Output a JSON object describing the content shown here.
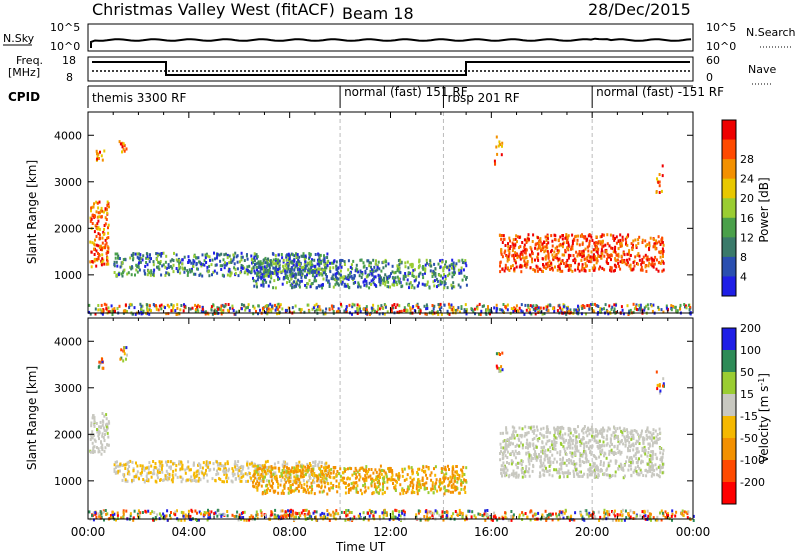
{
  "header": {
    "station": "Christmas Valley West (fitACF)",
    "beam": "Beam 18",
    "date": "28/Dec/2015"
  },
  "strip_labels": {
    "nsky": "N.Sky",
    "nsearch": "N.Search",
    "freq_line1": "Freq.",
    "freq_line2": "[MHz]",
    "nave": "Nave",
    "cpid": "CPID",
    "noise_top_left": "10^5",
    "noise_bottom_left": "10^0",
    "noise_top_right": "10^5",
    "noise_bottom_right": "10^0",
    "freq_top": "18",
    "freq_bottom": "8",
    "nave_top": "60",
    "nave_bottom": "0"
  },
  "cpid_segments": [
    {
      "label": "themis 3300 RF",
      "start": 0.0
    },
    {
      "label": "normal (fast) 151 RF",
      "start": 10.0
    },
    {
      "label": "rbsp 201 RF",
      "start": 14.1
    },
    {
      "label": "normal (fast) -151 RF",
      "start": 20.0
    }
  ],
  "chart_data": [
    {
      "type": "heatmap",
      "title": "",
      "xlabel": "Time UT",
      "ylabel": "Slant Range [km]",
      "xlim": [
        0,
        24
      ],
      "ylim": [
        180,
        4500
      ],
      "x_ticks": [
        "00:00",
        "04:00",
        "08:00",
        "12:00",
        "16:00",
        "20:00",
        "00:00"
      ],
      "y_ticks": [
        "1000",
        "2000",
        "3000",
        "4000"
      ],
      "colorbar": {
        "label": "Power [dB]",
        "range": [
          0,
          32
        ],
        "ticks": [
          "4",
          "8",
          "12",
          "16",
          "20",
          "24",
          "28"
        ],
        "colors": [
          "#1f1fe6",
          "#2a4fb0",
          "#3a7a6a",
          "#4aa04a",
          "#9acd32",
          "#e8c800",
          "#f39000",
          "#ff4a00",
          "#ee0000"
        ]
      },
      "scatter_regions": [
        {
          "t_start": 0.05,
          "t_end": 0.8,
          "r_min": 1200,
          "r_max": 2600,
          "level": "red-orange"
        },
        {
          "t_start": 1.0,
          "t_end": 9.5,
          "r_min": 1000,
          "r_max": 1500,
          "level": "blue-green"
        },
        {
          "t_start": 6.5,
          "t_end": 15.0,
          "r_min": 750,
          "r_max": 1350,
          "level": "blue-green"
        },
        {
          "t_start": 16.3,
          "t_end": 22.8,
          "r_min": 1100,
          "r_max": 1900,
          "level": "red"
        },
        {
          "t_start": 0.0,
          "t_end": 24.0,
          "r_min": 180,
          "r_max": 400,
          "level": "mixed"
        }
      ]
    },
    {
      "type": "heatmap",
      "title": "",
      "xlabel": "Time UT",
      "ylabel": "Slant Range [km]",
      "xlim": [
        0,
        24
      ],
      "ylim": [
        180,
        4500
      ],
      "x_ticks": [
        "00:00",
        "04:00",
        "08:00",
        "12:00",
        "16:00",
        "20:00",
        "00:00"
      ],
      "y_ticks": [
        "1000",
        "2000",
        "3000",
        "4000"
      ],
      "colorbar": {
        "label": "Velocity [m s^-1]",
        "unit_main": "Velocity [m s",
        "unit_exp": "-1",
        "unit_close": "]",
        "range": [
          -250,
          250
        ],
        "ticks": [
          "-200",
          "-100",
          "-50",
          "-15",
          "15",
          "50",
          "100",
          "200"
        ],
        "colors": [
          "#ff0000",
          "#ff4a00",
          "#f39000",
          "#f5b800",
          "#c8c8c0",
          "#9acd32",
          "#2e8b57",
          "#1f1fe6"
        ]
      },
      "scatter_regions": [
        {
          "t_start": 0.05,
          "t_end": 0.8,
          "r_min": 1600,
          "r_max": 2500,
          "level": "gray"
        },
        {
          "t_start": 1.0,
          "t_end": 9.5,
          "r_min": 1000,
          "r_max": 1450,
          "level": "gray-orange"
        },
        {
          "t_start": 6.5,
          "t_end": 15.0,
          "r_min": 750,
          "r_max": 1350,
          "level": "orange-green"
        },
        {
          "t_start": 16.3,
          "t_end": 22.8,
          "r_min": 1100,
          "r_max": 2200,
          "level": "gray"
        },
        {
          "t_start": 0.0,
          "t_end": 24.0,
          "r_min": 180,
          "r_max": 400,
          "level": "mixed"
        }
      ]
    }
  ]
}
